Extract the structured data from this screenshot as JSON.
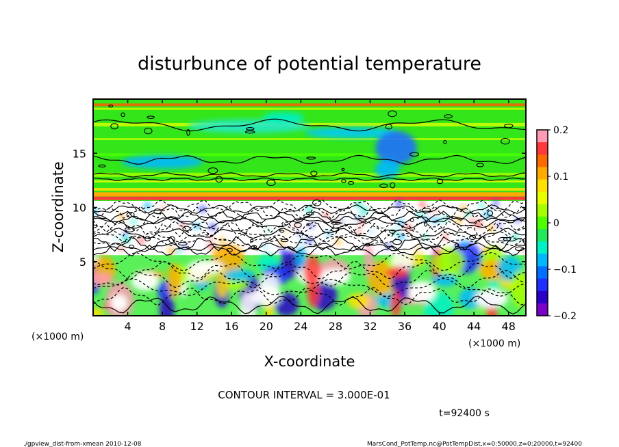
{
  "chart_data": {
    "type": "heatmap",
    "title": "disturbunce of potential temperature",
    "xlabel": "X-coordinate",
    "ylabel": "Z-coordinate",
    "xunit_left": "(×1000 m)",
    "xunit_right": "(×1000 m)",
    "xlim": [
      0,
      50
    ],
    "ylim": [
      0,
      20
    ],
    "xticks": [
      "4",
      "8",
      "12",
      "16",
      "20",
      "24",
      "28",
      "32",
      "36",
      "40",
      "44",
      "48"
    ],
    "yticks": [
      "5",
      "10",
      "15"
    ],
    "colorbar": {
      "range": [
        -0.2,
        0.2
      ],
      "labels": [
        "0.2",
        "0.1",
        "0",
        "−0.1",
        "−0.2"
      ],
      "colors": [
        "#ff9bb4",
        "#ff3a3a",
        "#ff6a00",
        "#ffaa00",
        "#ffe000",
        "#e8ff00",
        "#a6ff00",
        "#4fff00",
        "#22e85a",
        "#00f0c8",
        "#00b8ff",
        "#0070ff",
        "#1f2fff",
        "#2a00c8",
        "#7a00c8"
      ]
    },
    "contour_interval": "CONTOUR INTERVAL = 3.000E-01",
    "time_label": "t=92400 s"
  },
  "footer": {
    "left": "./gpview_dist-from-xmean  2010-12-08",
    "right": "MarsCond_PotTemp.nc@PotTempDist,x=0:50000,z=0:20000,t=92400"
  }
}
